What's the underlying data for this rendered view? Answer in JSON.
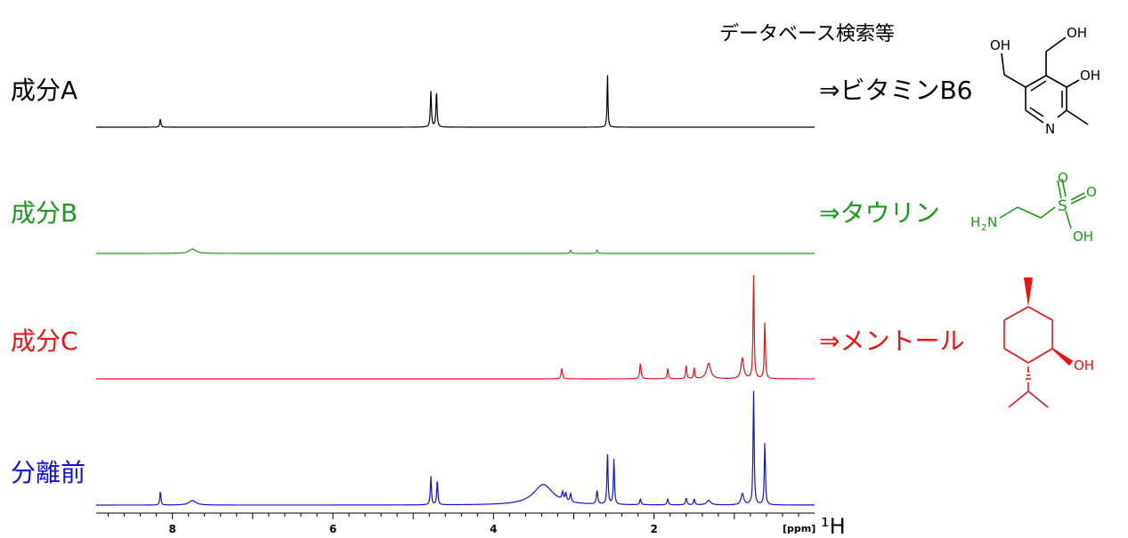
{
  "header": {
    "database_search": "データベース検索等"
  },
  "axis": {
    "unit_label": "[ppm]",
    "nucleus_label": "¹H",
    "ticks": [
      "8",
      "6",
      "4",
      "2"
    ],
    "xlim": [
      8.95,
      0
    ]
  },
  "colors": {
    "A": "#000000",
    "B": "#1a9a1a",
    "C": "#ee1111",
    "mix": "#1111dd"
  },
  "chart_data": {
    "type": "line",
    "xlabel": "[ppm]",
    "x_reversed": true,
    "series": [
      {
        "name": "成分A",
        "compound": "⇒ビタミンB6",
        "color": "#000000",
        "peaks": [
          {
            "ppm": 8.15,
            "height": 0.15,
            "width": 0.008
          },
          {
            "ppm": 4.78,
            "height": 0.65,
            "width": 0.008
          },
          {
            "ppm": 4.71,
            "height": 0.65,
            "width": 0.008
          },
          {
            "ppm": 2.58,
            "height": 1.0,
            "width": 0.006
          }
        ]
      },
      {
        "name": "成分B",
        "compound": "⇒タウリン",
        "color": "#1a9a1a",
        "peaks": [
          {
            "ppm": 7.75,
            "height": 0.2,
            "width": 0.05
          },
          {
            "ppm": 3.04,
            "height": 0.15,
            "width": 0.008
          },
          {
            "ppm": 2.71,
            "height": 0.15,
            "width": 0.008
          }
        ]
      },
      {
        "name": "成分C",
        "compound": "⇒メントール",
        "color": "#ee1111",
        "peaks": [
          {
            "ppm": 3.15,
            "height": 0.1,
            "width": 0.01
          },
          {
            "ppm": 2.17,
            "height": 0.15,
            "width": 0.01
          },
          {
            "ppm": 1.83,
            "height": 0.1,
            "width": 0.008
          },
          {
            "ppm": 1.6,
            "height": 0.13,
            "width": 0.008
          },
          {
            "ppm": 1.5,
            "height": 0.11,
            "width": 0.008
          },
          {
            "ppm": 1.32,
            "height": 0.15,
            "width": 0.03
          },
          {
            "ppm": 0.9,
            "height": 0.2,
            "width": 0.02
          },
          {
            "ppm": 0.76,
            "height": 1.0,
            "width": 0.008
          },
          {
            "ppm": 0.62,
            "height": 0.55,
            "width": 0.008
          }
        ]
      },
      {
        "name": "分離前",
        "color": "#1111dd",
        "peaks": [
          {
            "ppm": 8.15,
            "height": 0.12,
            "width": 0.008
          },
          {
            "ppm": 7.75,
            "height": 0.04,
            "width": 0.05
          },
          {
            "ppm": 4.78,
            "height": 0.25,
            "width": 0.008
          },
          {
            "ppm": 4.7,
            "height": 0.22,
            "width": 0.008
          },
          {
            "ppm": 3.38,
            "height": 0.18,
            "width": 0.15
          },
          {
            "ppm": 3.14,
            "height": 0.07,
            "width": 0.01
          },
          {
            "ppm": 3.1,
            "height": 0.07,
            "width": 0.01
          },
          {
            "ppm": 3.04,
            "height": 0.07,
            "width": 0.01
          },
          {
            "ppm": 2.71,
            "height": 0.12,
            "width": 0.01
          },
          {
            "ppm": 2.58,
            "height": 0.45,
            "width": 0.008
          },
          {
            "ppm": 2.5,
            "height": 0.4,
            "width": 0.008
          },
          {
            "ppm": 2.17,
            "height": 0.05,
            "width": 0.01
          },
          {
            "ppm": 1.83,
            "height": 0.05,
            "width": 0.01
          },
          {
            "ppm": 1.6,
            "height": 0.06,
            "width": 0.01
          },
          {
            "ppm": 1.5,
            "height": 0.05,
            "width": 0.01
          },
          {
            "ppm": 1.32,
            "height": 0.04,
            "width": 0.03
          },
          {
            "ppm": 0.9,
            "height": 0.1,
            "width": 0.02
          },
          {
            "ppm": 0.76,
            "height": 1.0,
            "width": 0.008
          },
          {
            "ppm": 0.62,
            "height": 0.55,
            "width": 0.008
          }
        ]
      }
    ]
  },
  "structures": {
    "b6": {
      "oh_top_left": "OH",
      "oh_top_right": "OH",
      "oh_right": "OH",
      "n": "N"
    },
    "taurine": {
      "o1": "O",
      "o2": "O",
      "s": "S",
      "oh": "OH",
      "h2n_h": "H",
      "h2n_2": "2",
      "h2n_n": "N"
    },
    "menthol": {
      "oh": "OH"
    }
  }
}
